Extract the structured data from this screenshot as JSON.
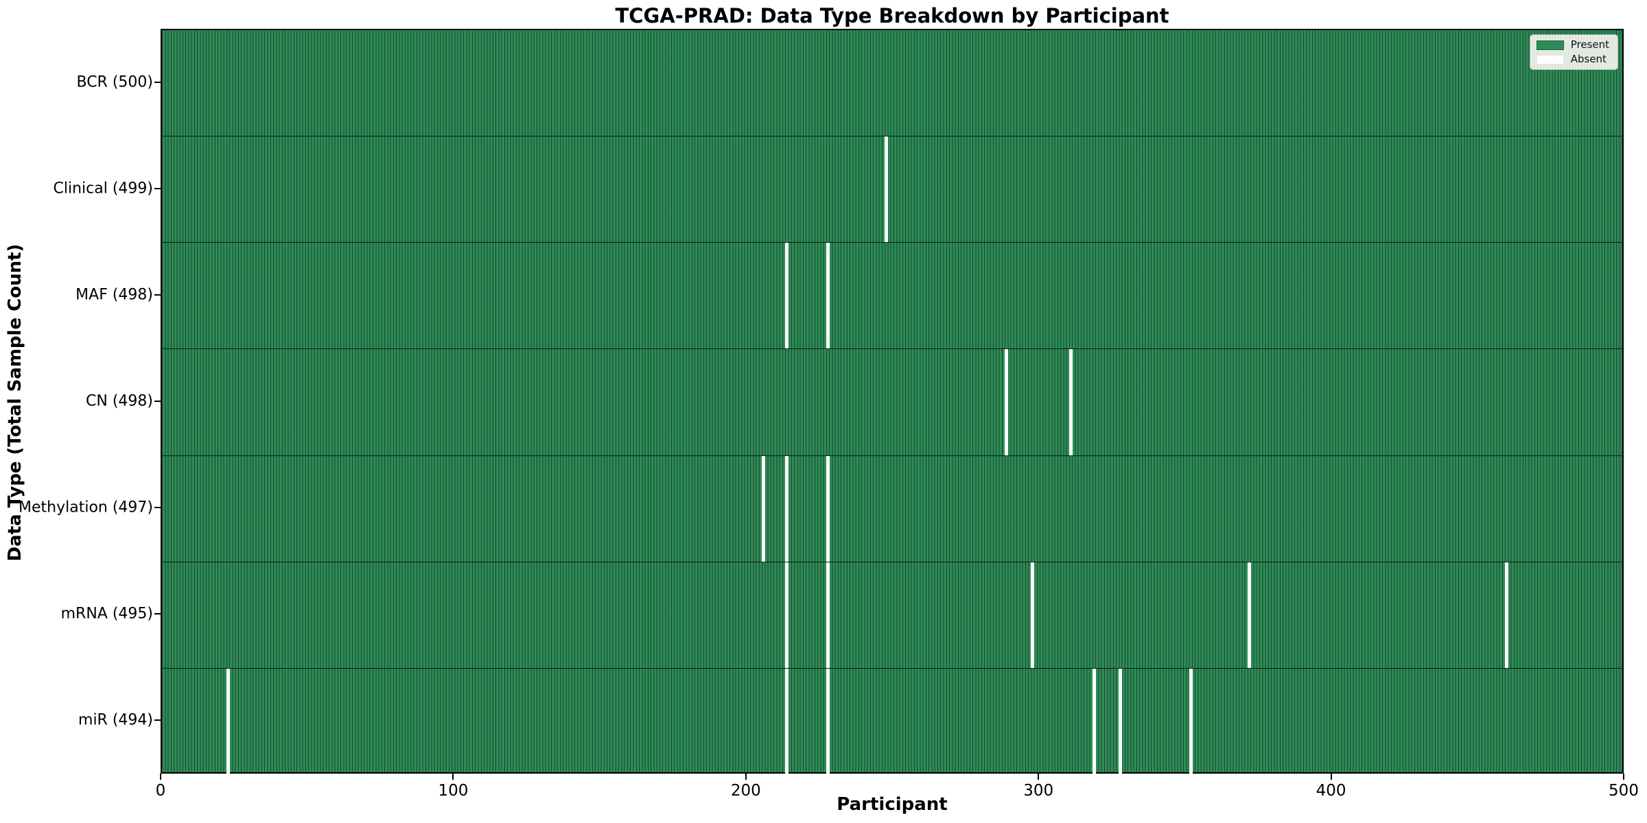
{
  "chart_data": {
    "type": "heatmap",
    "title": "TCGA-PRAD: Data Type Breakdown by Participant",
    "xlabel": "Participant",
    "ylabel": "Data Type (Total Sample Count)",
    "x_range": [
      0,
      500
    ],
    "x_ticks": [
      "0",
      "100",
      "200",
      "300",
      "400",
      "500"
    ],
    "n_participants": 500,
    "grid": false,
    "legend_position": "upper right",
    "legend": [
      {
        "label": "Present",
        "color": "#2e8b57"
      },
      {
        "label": "Absent",
        "color": "#ffffff"
      }
    ],
    "rows": [
      {
        "name": "BCR",
        "label": "BCR (500)",
        "present_count": 500,
        "absent_participants": []
      },
      {
        "name": "Clinical",
        "label": "Clinical (499)",
        "present_count": 499,
        "absent_participants": [
          247
        ]
      },
      {
        "name": "MAF",
        "label": "MAF (498)",
        "present_count": 498,
        "absent_participants": [
          213,
          227
        ]
      },
      {
        "name": "CN",
        "label": "CN (498)",
        "present_count": 498,
        "absent_participants": [
          288,
          310
        ]
      },
      {
        "name": "Methylation",
        "label": "Methylation (497)",
        "present_count": 497,
        "absent_participants": [
          205,
          213,
          227
        ]
      },
      {
        "name": "mRNA",
        "label": "mRNA (495)",
        "present_count": 495,
        "absent_participants": [
          213,
          227,
          297,
          371,
          459
        ]
      },
      {
        "name": "miR",
        "label": "miR (494)",
        "present_count": 494,
        "absent_participants": [
          22,
          213,
          227,
          318,
          327,
          351
        ]
      }
    ],
    "colors": {
      "present": "#2e8b57",
      "absent": "#ffffff",
      "cell_edge": "#1b5e3b",
      "row_separator": "#1a1a1a",
      "plot_border": "#000000",
      "legend_bg": "#f2f3ee",
      "legend_border": "#b2b2b2"
    }
  }
}
